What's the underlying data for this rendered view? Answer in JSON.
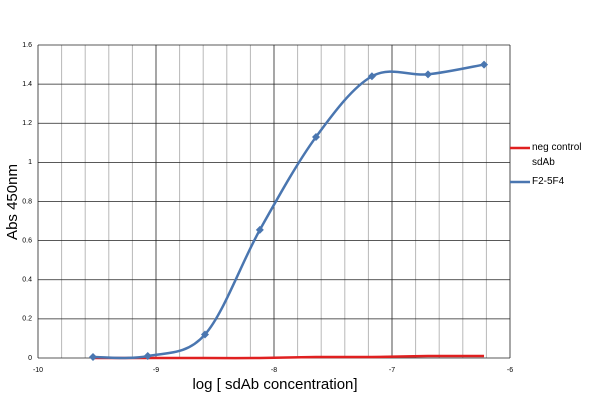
{
  "chart_data": {
    "type": "line",
    "x_label": "log [ sdAb concentration]",
    "y_label": "Abs 450nm",
    "x": [
      -9.534,
      -9.07,
      -8.585,
      -8.12,
      -7.644,
      -7.17,
      -6.695,
      -6.22
    ],
    "series": [
      {
        "name": "neg control sdAb",
        "color": "#e02020",
        "values": [
          0,
          0,
          0,
          0,
          0.005,
          0.005,
          0.01,
          0.01
        ]
      },
      {
        "name": "F2-5F4",
        "color": "#4a76b0",
        "values": [
          0.005,
          0.01,
          0.12,
          0.655,
          1.13,
          1.44,
          1.45,
          1.5
        ]
      }
    ],
    "xlim": [
      -10,
      -6
    ],
    "xticks": [
      -10,
      -9,
      -8,
      -7,
      -6
    ],
    "ylim": [
      0,
      1.6
    ],
    "yticks": [
      0,
      0.2,
      0.4,
      0.6,
      0.8,
      1,
      1.2,
      1.4,
      1.6
    ],
    "grid": true
  }
}
